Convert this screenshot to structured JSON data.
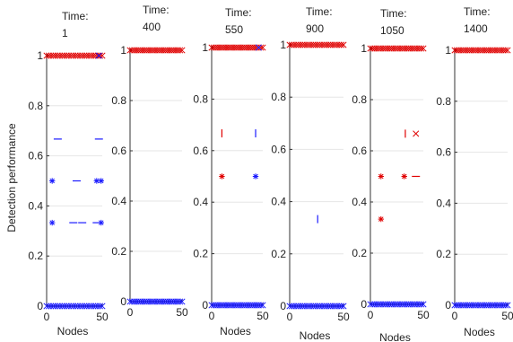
{
  "figure": {
    "ylabel": "Detection performance",
    "colors": {
      "high": "#e00000",
      "low": "#1a1aff",
      "axis": "#333333",
      "grid": "#e6e6e6"
    }
  },
  "chart_data": [
    {
      "type": "scatter",
      "title_lines": [
        "Time:",
        "1"
      ],
      "xlabel": "Nodes",
      "xlim": [
        0,
        50
      ],
      "ylim": [
        0,
        1
      ],
      "xticks": [
        "0",
        "50"
      ],
      "yticks": [
        "0",
        "0.2",
        "0.4",
        "0.6",
        "0.8",
        "1"
      ],
      "grid": true,
      "series": [
        {
          "marker": "x",
          "color": "#e00000",
          "x": [
            0,
            2,
            4,
            6,
            8,
            10,
            12,
            14,
            16,
            18,
            20,
            22,
            24,
            26,
            28,
            30,
            32,
            34,
            36,
            38,
            40,
            42,
            44,
            46,
            48,
            50
          ],
          "y": [
            1,
            1,
            1,
            1,
            1,
            1,
            1,
            1,
            1,
            1,
            1,
            1,
            1,
            1,
            1,
            1,
            1,
            1,
            1,
            1,
            1,
            1,
            1,
            1,
            1,
            1
          ]
        },
        {
          "marker": "x",
          "color": "#1a1aff",
          "x": [
            47
          ],
          "y": [
            1
          ]
        },
        {
          "marker": "x",
          "color": "#1a1aff",
          "x": [
            0,
            2,
            4,
            6,
            8,
            10,
            12,
            14,
            16,
            18,
            20,
            22,
            24,
            26,
            28,
            30,
            32,
            34,
            36,
            38,
            40,
            42,
            44,
            46,
            48,
            50
          ],
          "y": [
            0,
            0,
            0,
            0,
            0,
            0,
            0,
            0,
            0,
            0,
            0,
            0,
            0,
            0,
            0,
            0,
            0,
            0,
            0,
            0,
            0,
            0,
            0,
            0,
            0,
            0
          ]
        },
        {
          "marker": "dash",
          "color": "#1a1aff",
          "x": [
            10,
            47
          ],
          "y": [
            0.667,
            0.667
          ]
        },
        {
          "marker": "dash",
          "color": "#1a1aff",
          "x": [
            27
          ],
          "y": [
            0.5
          ]
        },
        {
          "marker": "star",
          "color": "#1a1aff",
          "x": [
            5,
            45,
            49
          ],
          "y": [
            0.5,
            0.5,
            0.5
          ]
        },
        {
          "marker": "dash",
          "color": "#1a1aff",
          "x": [
            24,
            32,
            45
          ],
          "y": [
            0.333,
            0.333,
            0.333
          ]
        },
        {
          "marker": "star",
          "color": "#1a1aff",
          "x": [
            5,
            49
          ],
          "y": [
            0.333,
            0.333
          ]
        }
      ]
    },
    {
      "type": "scatter",
      "title_lines": [
        "Time:",
        "400"
      ],
      "xlabel": "",
      "xlim": [
        0,
        50
      ],
      "ylim": [
        0,
        1
      ],
      "xticks": [
        "0",
        "50"
      ],
      "yticks": [
        "0",
        "0.2",
        "0.4",
        "0.6",
        "0.8",
        "1"
      ],
      "grid": true,
      "series": [
        {
          "marker": "x",
          "color": "#e00000",
          "x": [
            0,
            2,
            4,
            6,
            8,
            10,
            12,
            14,
            16,
            18,
            20,
            22,
            24,
            26,
            28,
            30,
            32,
            34,
            36,
            38,
            40,
            42,
            44,
            46,
            48,
            50
          ],
          "y": [
            1,
            1,
            1,
            1,
            1,
            1,
            1,
            1,
            1,
            1,
            1,
            1,
            1,
            1,
            1,
            1,
            1,
            1,
            1,
            1,
            1,
            1,
            1,
            1,
            1,
            1
          ]
        },
        {
          "marker": "x",
          "color": "#1a1aff",
          "x": [
            0,
            2,
            4,
            6,
            8,
            10,
            12,
            14,
            16,
            18,
            20,
            22,
            24,
            26,
            28,
            30,
            32,
            34,
            36,
            38,
            40,
            42,
            44,
            46,
            48,
            50
          ],
          "y": [
            0,
            0,
            0,
            0,
            0,
            0,
            0,
            0,
            0,
            0,
            0,
            0,
            0,
            0,
            0,
            0,
            0,
            0,
            0,
            0,
            0,
            0,
            0,
            0,
            0,
            0
          ]
        }
      ]
    },
    {
      "type": "scatter",
      "title_lines": [
        "Time:",
        "550"
      ],
      "xlabel": "Nodes",
      "xlim": [
        0,
        50
      ],
      "ylim": [
        0,
        1
      ],
      "xticks": [
        "0",
        "50"
      ],
      "yticks": [
        "0",
        "0.2",
        "0.4",
        "0.6",
        "0.8",
        "1"
      ],
      "grid": true,
      "series": [
        {
          "marker": "x",
          "color": "#e00000",
          "x": [
            0,
            2,
            4,
            6,
            8,
            10,
            12,
            14,
            16,
            18,
            20,
            22,
            24,
            26,
            28,
            30,
            32,
            34,
            36,
            38,
            40,
            42,
            44,
            46,
            48,
            50
          ],
          "y": [
            1,
            1,
            1,
            1,
            1,
            1,
            1,
            1,
            1,
            1,
            1,
            1,
            1,
            1,
            1,
            1,
            1,
            1,
            1,
            1,
            1,
            1,
            1,
            1,
            1,
            1
          ]
        },
        {
          "marker": "x",
          "color": "#1a1aff",
          "x": [
            46
          ],
          "y": [
            1
          ]
        },
        {
          "marker": "vbar",
          "color": "#e00000",
          "x": [
            10
          ],
          "y": [
            0.667
          ]
        },
        {
          "marker": "vbar",
          "color": "#1a1aff",
          "x": [
            43
          ],
          "y": [
            0.667
          ]
        },
        {
          "marker": "star",
          "color": "#e00000",
          "x": [
            10
          ],
          "y": [
            0.5
          ]
        },
        {
          "marker": "star",
          "color": "#1a1aff",
          "x": [
            43
          ],
          "y": [
            0.5
          ]
        },
        {
          "marker": "x",
          "color": "#1a1aff",
          "x": [
            0,
            2,
            4,
            6,
            8,
            10,
            12,
            14,
            16,
            18,
            20,
            22,
            24,
            26,
            28,
            30,
            32,
            34,
            36,
            38,
            40,
            42,
            44,
            46,
            48,
            50
          ],
          "y": [
            0,
            0,
            0,
            0,
            0,
            0,
            0,
            0,
            0,
            0,
            0,
            0,
            0,
            0,
            0,
            0,
            0,
            0,
            0,
            0,
            0,
            0,
            0,
            0,
            0,
            0
          ]
        }
      ]
    },
    {
      "type": "scatter",
      "title_lines": [
        "Time:",
        "900"
      ],
      "xlabel": "Nodes",
      "xlim": [
        0,
        50
      ],
      "ylim": [
        0,
        1
      ],
      "xticks": [
        "0",
        "50"
      ],
      "yticks": [
        "0",
        "0.2",
        "0.4",
        "0.6",
        "0.8",
        "1"
      ],
      "grid": true,
      "series": [
        {
          "marker": "x",
          "color": "#e00000",
          "x": [
            0,
            2,
            4,
            6,
            8,
            10,
            12,
            14,
            16,
            18,
            20,
            22,
            24,
            26,
            28,
            30,
            32,
            34,
            36,
            38,
            40,
            42,
            44,
            46,
            48,
            50
          ],
          "y": [
            1,
            1,
            1,
            1,
            1,
            1,
            1,
            1,
            1,
            1,
            1,
            1,
            1,
            1,
            1,
            1,
            1,
            1,
            1,
            1,
            1,
            1,
            1,
            1,
            1,
            1
          ]
        },
        {
          "marker": "vbar",
          "color": "#1a1aff",
          "x": [
            26
          ],
          "y": [
            0.333
          ]
        },
        {
          "marker": "x",
          "color": "#1a1aff",
          "x": [
            0,
            2,
            4,
            6,
            8,
            10,
            12,
            14,
            16,
            18,
            20,
            22,
            24,
            26,
            28,
            30,
            32,
            34,
            36,
            38,
            40,
            42,
            44,
            46,
            48,
            50
          ],
          "y": [
            0,
            0,
            0,
            0,
            0,
            0,
            0,
            0,
            0,
            0,
            0,
            0,
            0,
            0,
            0,
            0,
            0,
            0,
            0,
            0,
            0,
            0,
            0,
            0,
            0,
            0
          ]
        }
      ]
    },
    {
      "type": "scatter",
      "title_lines": [
        "Time:",
        "1050"
      ],
      "xlabel": "Nodes",
      "xlim": [
        0,
        50
      ],
      "ylim": [
        0,
        1
      ],
      "xticks": [
        "0",
        "50"
      ],
      "yticks": [
        "0",
        "0.2",
        "0.4",
        "0.6",
        "0.8",
        "1"
      ],
      "grid": true,
      "series": [
        {
          "marker": "x",
          "color": "#e00000",
          "x": [
            0,
            2,
            4,
            6,
            8,
            10,
            12,
            14,
            16,
            18,
            20,
            22,
            24,
            26,
            28,
            30,
            32,
            34,
            36,
            38,
            40,
            42,
            44,
            46,
            48,
            50
          ],
          "y": [
            1,
            1,
            1,
            1,
            1,
            1,
            1,
            1,
            1,
            1,
            1,
            1,
            1,
            1,
            1,
            1,
            1,
            1,
            1,
            1,
            1,
            1,
            1,
            1,
            1,
            1
          ]
        },
        {
          "marker": "vbar",
          "color": "#e00000",
          "x": [
            33
          ],
          "y": [
            0.667
          ]
        },
        {
          "marker": "x",
          "color": "#e00000",
          "x": [
            43
          ],
          "y": [
            0.667
          ]
        },
        {
          "marker": "star",
          "color": "#e00000",
          "x": [
            10,
            32
          ],
          "y": [
            0.5,
            0.5
          ]
        },
        {
          "marker": "dash",
          "color": "#e00000",
          "x": [
            43
          ],
          "y": [
            0.5
          ]
        },
        {
          "marker": "star",
          "color": "#e00000",
          "x": [
            10
          ],
          "y": [
            0.333
          ]
        },
        {
          "marker": "x",
          "color": "#1a1aff",
          "x": [
            0,
            2,
            4,
            6,
            8,
            10,
            12,
            14,
            16,
            18,
            20,
            22,
            24,
            26,
            28,
            30,
            32,
            34,
            36,
            38,
            40,
            42,
            44,
            46,
            48,
            50
          ],
          "y": [
            0,
            0,
            0,
            0,
            0,
            0,
            0,
            0,
            0,
            0,
            0,
            0,
            0,
            0,
            0,
            0,
            0,
            0,
            0,
            0,
            0,
            0,
            0,
            0,
            0,
            0
          ]
        }
      ]
    },
    {
      "type": "scatter",
      "title_lines": [
        "Time:",
        "1400"
      ],
      "xlabel": "Nodes",
      "xlim": [
        0,
        50
      ],
      "ylim": [
        0,
        1
      ],
      "xticks": [
        "0",
        "50"
      ],
      "yticks": [
        "0",
        "0.2",
        "0.4",
        "0.6",
        "0.8",
        "1"
      ],
      "grid": true,
      "series": [
        {
          "marker": "x",
          "color": "#e00000",
          "x": [
            0,
            2,
            4,
            6,
            8,
            10,
            12,
            14,
            16,
            18,
            20,
            22,
            24,
            26,
            28,
            30,
            32,
            34,
            36,
            38,
            40,
            42,
            44,
            46,
            48,
            50
          ],
          "y": [
            1,
            1,
            1,
            1,
            1,
            1,
            1,
            1,
            1,
            1,
            1,
            1,
            1,
            1,
            1,
            1,
            1,
            1,
            1,
            1,
            1,
            1,
            1,
            1,
            1,
            1
          ]
        },
        {
          "marker": "x",
          "color": "#1a1aff",
          "x": [
            0,
            2,
            4,
            6,
            8,
            10,
            12,
            14,
            16,
            18,
            20,
            22,
            24,
            26,
            28,
            30,
            32,
            34,
            36,
            38,
            40,
            42,
            44,
            46,
            48,
            50
          ],
          "y": [
            0,
            0,
            0,
            0,
            0,
            0,
            0,
            0,
            0,
            0,
            0,
            0,
            0,
            0,
            0,
            0,
            0,
            0,
            0,
            0,
            0,
            0,
            0,
            0,
            0,
            0
          ]
        }
      ]
    }
  ]
}
